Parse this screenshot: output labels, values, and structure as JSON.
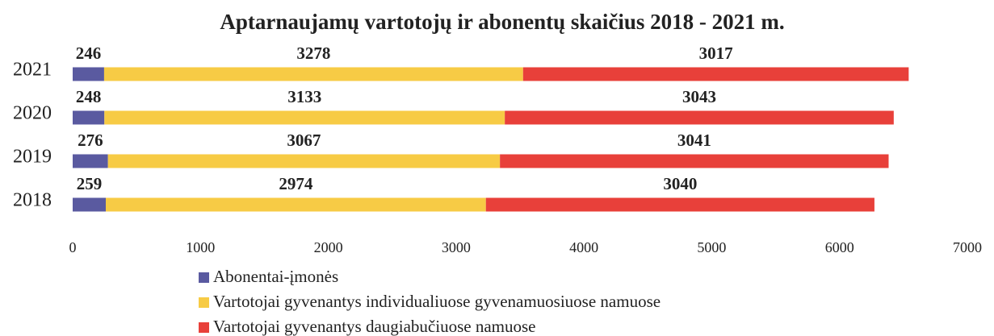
{
  "chart_data": {
    "type": "stacked-bar-horizontal",
    "title": "Aptarnaujamų vartotojų ir abonentų skaičius 2018 - 2021 m.",
    "categories": [
      "2021",
      "2020",
      "2019",
      "2018"
    ],
    "series": [
      {
        "name": "Abonentai-įmonės",
        "color": "#5a5aa0",
        "values": [
          246,
          248,
          276,
          259
        ]
      },
      {
        "name": "Vartotojai gyvenantys individualiuose gyvenamuosiuose namuose",
        "color": "#f7cb45",
        "values": [
          3278,
          3133,
          3067,
          2974
        ]
      },
      {
        "name": "Vartotojai gyvenantys daugiabučiuose namuose",
        "color": "#e8403a",
        "values": [
          3017,
          3043,
          3041,
          3040
        ]
      }
    ],
    "xlim": [
      0,
      7000
    ],
    "xticks": [
      0,
      1000,
      2000,
      3000,
      4000,
      5000,
      6000,
      7000
    ],
    "legend": "bottom"
  }
}
